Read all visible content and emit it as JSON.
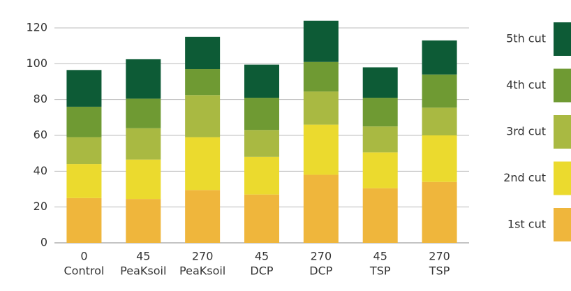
{
  "chart_data": {
    "type": "stacked_bar",
    "categories": [
      [
        "0",
        "Control"
      ],
      [
        "45",
        "PeaKsoil"
      ],
      [
        "270",
        "PeaKsoil"
      ],
      [
        "45",
        "DCP"
      ],
      [
        "270",
        "DCP"
      ],
      [
        "45",
        "TSP"
      ],
      [
        "270",
        "TSP"
      ]
    ],
    "series": [
      {
        "name": "1st cut",
        "color": "#efb63c",
        "values": [
          25,
          24.5,
          29.5,
          27,
          38,
          30.5,
          34
        ]
      },
      {
        "name": "2nd cut",
        "color": "#ebda2e",
        "values": [
          19,
          22,
          29.5,
          21,
          28,
          20,
          26
        ]
      },
      {
        "name": "3rd cut",
        "color": "#a9b942",
        "values": [
          15,
          17.5,
          23.5,
          15,
          18.5,
          14.5,
          15.5
        ]
      },
      {
        "name": "4th cut",
        "color": "#6f9a33",
        "values": [
          17,
          16.5,
          14.5,
          18,
          16.5,
          16,
          18.5
        ]
      },
      {
        "name": "5th cut",
        "color": "#0d5b36",
        "values": [
          20.5,
          22,
          18,
          18.5,
          23,
          17,
          19
        ]
      }
    ],
    "ylim": [
      0,
      120
    ],
    "yticks": [
      0,
      20,
      40,
      60,
      80,
      100,
      120
    ],
    "grid": true
  }
}
